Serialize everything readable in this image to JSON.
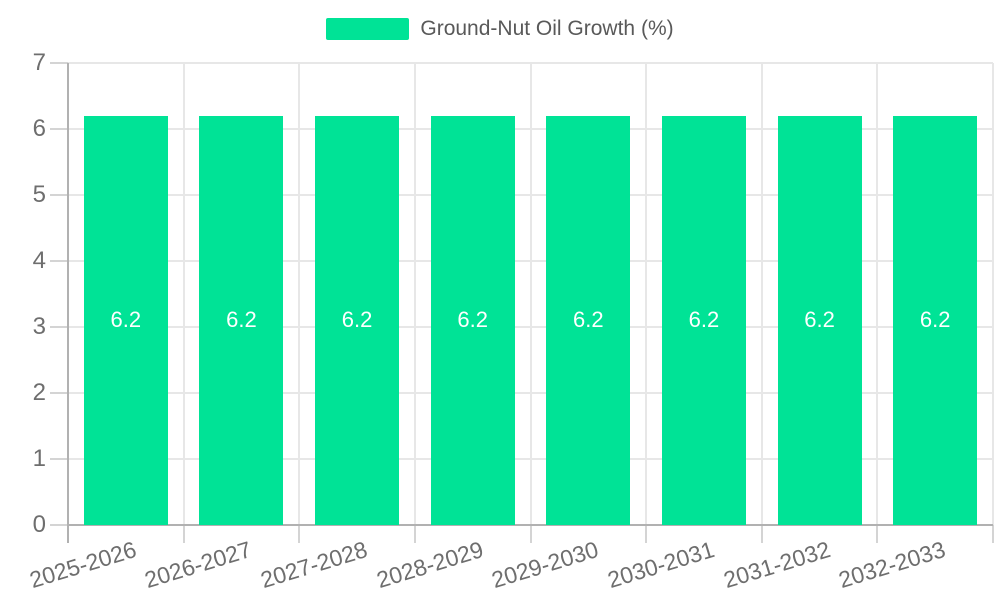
{
  "chart_data": {
    "type": "bar",
    "title": "Ground-Nut Oil Growth (%)",
    "categories": [
      "2025-2026",
      "2026-2027",
      "2027-2028",
      "2028-2029",
      "2029-2030",
      "2030-2031",
      "2031-2032",
      "2032-2033"
    ],
    "series": [
      {
        "name": "Ground-Nut Oil Growth (%)",
        "values": [
          6.2,
          6.2,
          6.2,
          6.2,
          6.2,
          6.2,
          6.2,
          6.2
        ]
      }
    ],
    "data_labels": [
      "6.2",
      "6.2",
      "6.2",
      "6.2",
      "6.2",
      "6.2",
      "6.2",
      "6.2"
    ],
    "xlabel": "",
    "ylabel": "",
    "ylim": [
      0,
      7
    ],
    "yticks": [
      "0",
      "1",
      "2",
      "3",
      "4",
      "5",
      "6",
      "7"
    ],
    "grid": true,
    "legend_position": "top"
  },
  "colors": {
    "bar": "#00E396",
    "grid": "#e7e7e7",
    "axis": "#b1b1b1",
    "tick": "#d4d4d4",
    "axis_text": "#6e6e6e",
    "legend_text": "#595959",
    "data_label": "#ffffff",
    "background": "#ffffff"
  }
}
